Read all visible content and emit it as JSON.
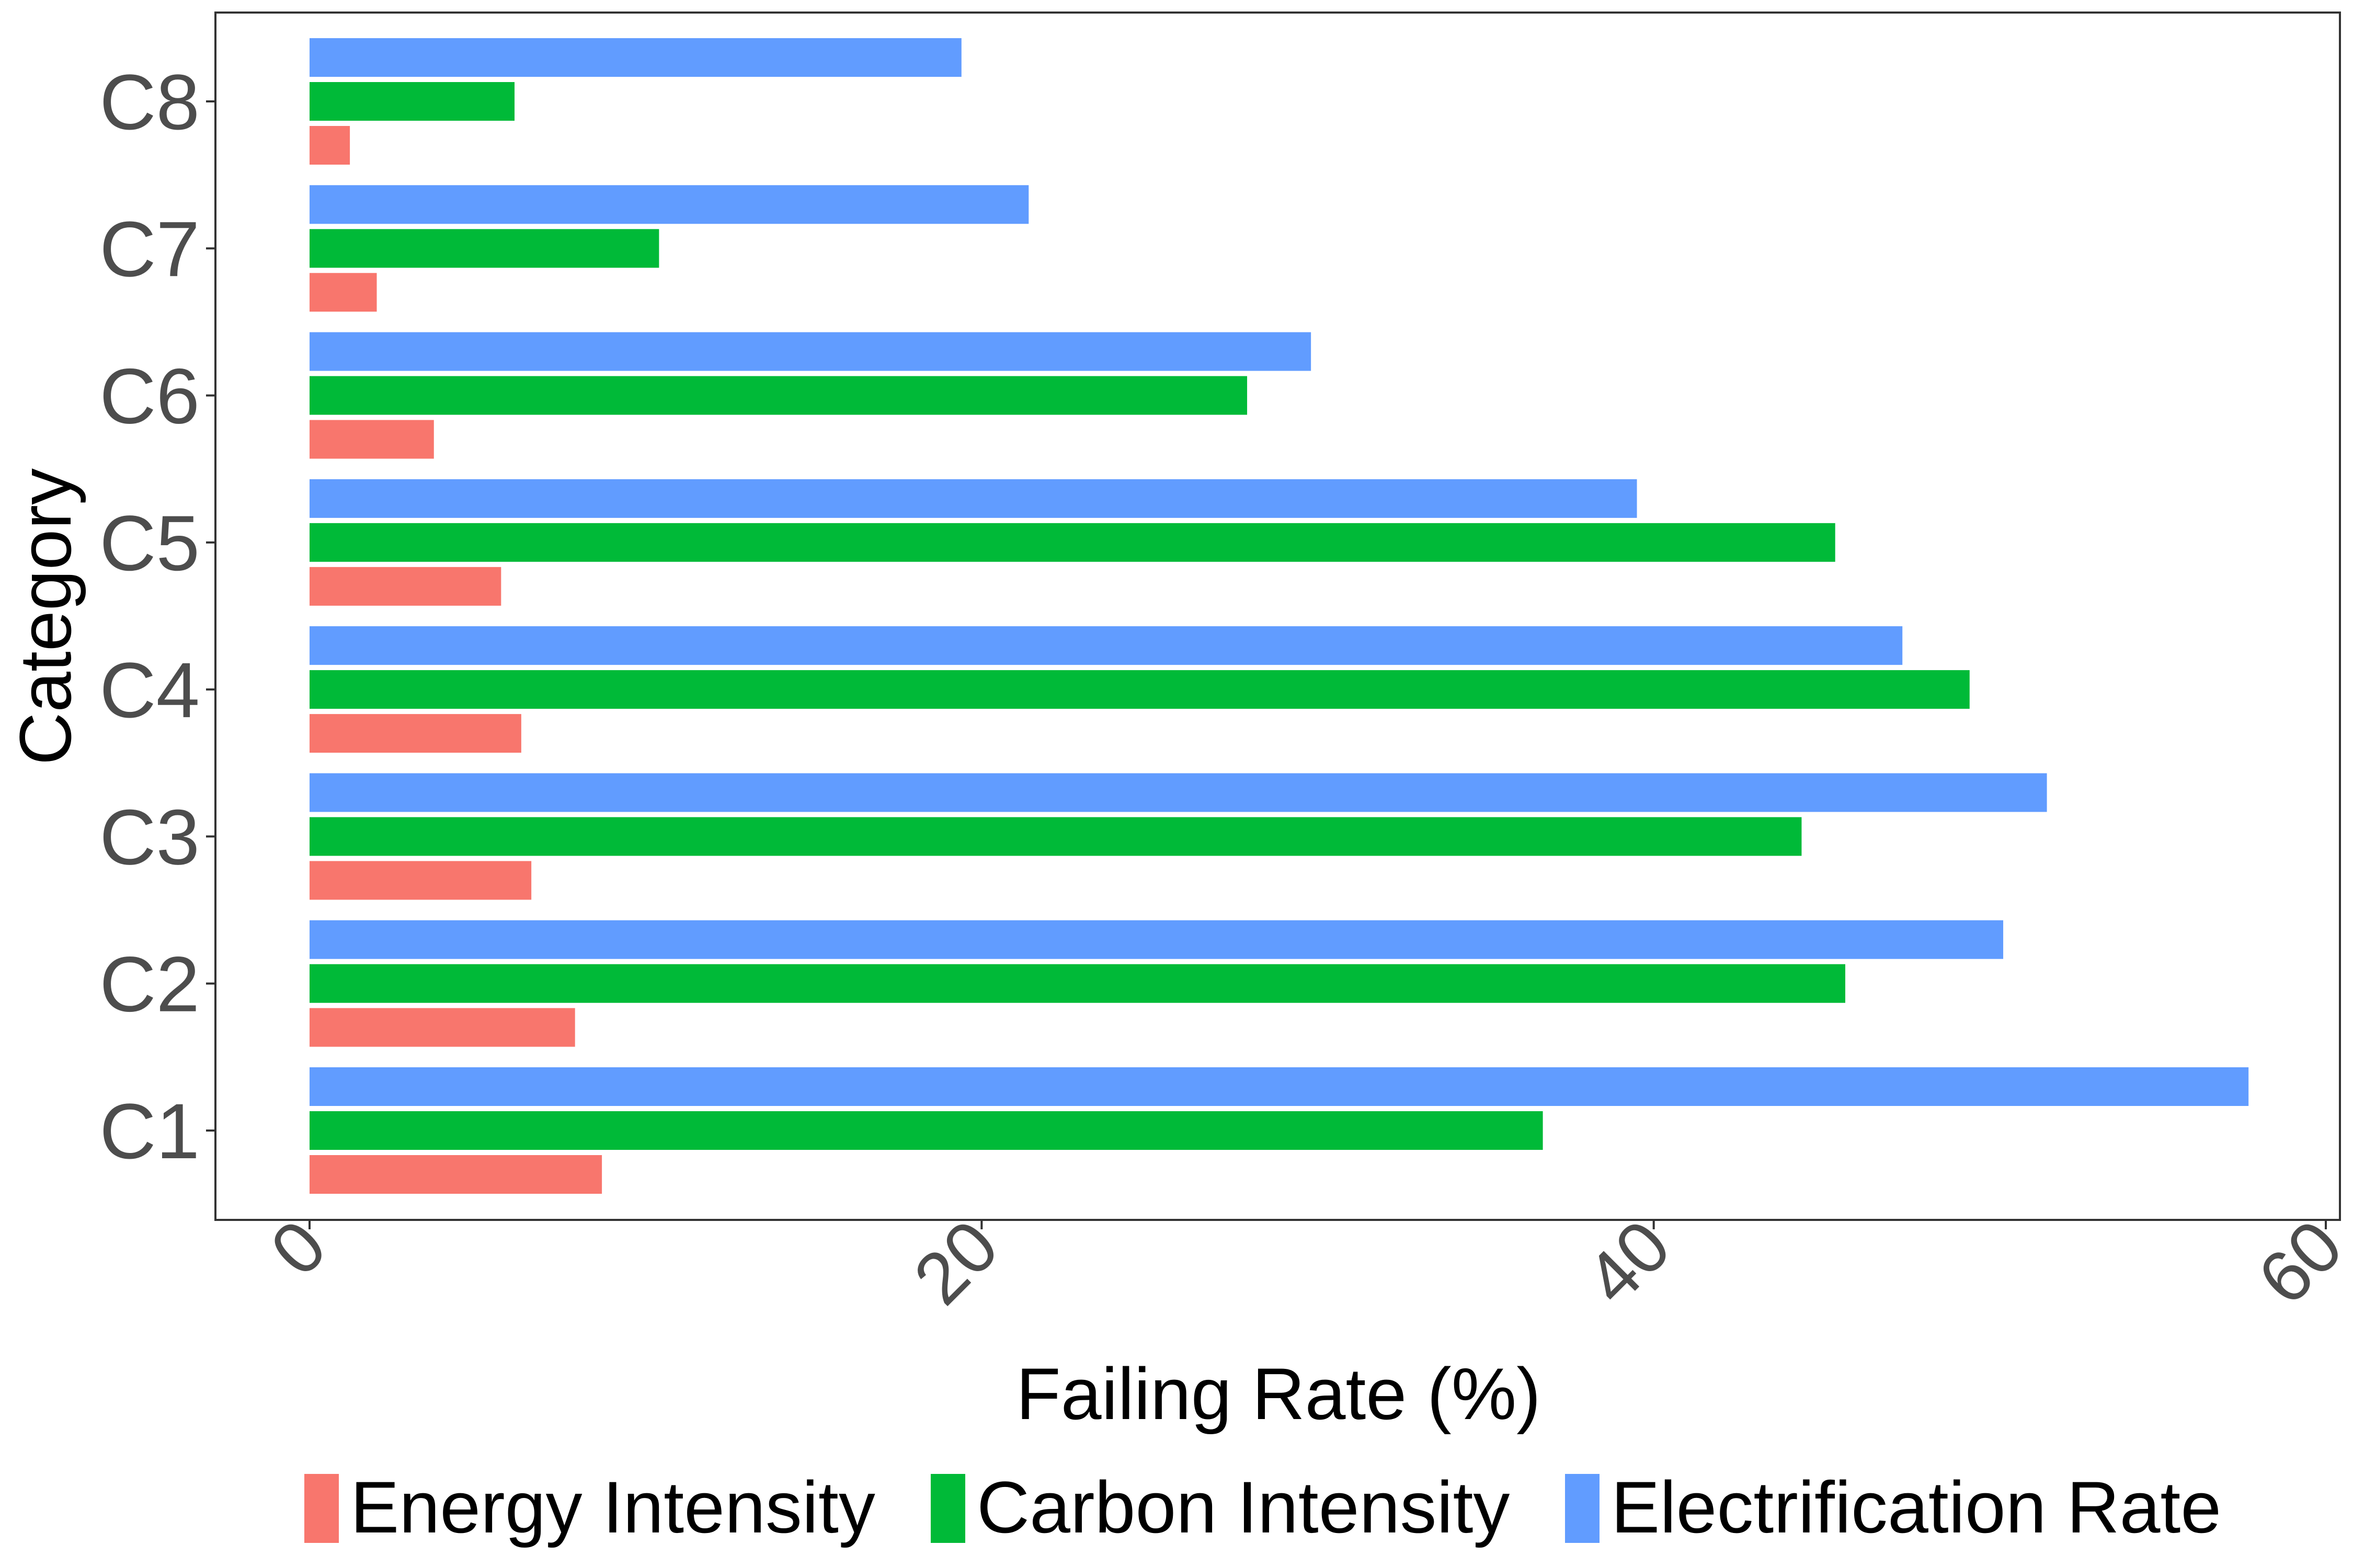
{
  "chart_data": {
    "type": "bar",
    "orientation": "horizontal",
    "categories": [
      "C1",
      "C2",
      "C3",
      "C4",
      "C5",
      "C6",
      "C7",
      "C8"
    ],
    "series": [
      {
        "name": "Energy Intensity",
        "color": "#F8766D",
        "values": [
          8.7,
          7.9,
          6.6,
          6.3,
          5.7,
          3.7,
          2.0,
          1.2
        ]
      },
      {
        "name": "Carbon Intensity",
        "color": "#00BA38",
        "values": [
          36.7,
          45.7,
          44.4,
          49.4,
          45.4,
          27.9,
          10.4,
          6.1
        ]
      },
      {
        "name": "Electrification Rate",
        "color": "#619CFF",
        "values": [
          57.7,
          50.4,
          51.7,
          47.4,
          39.5,
          29.8,
          21.4,
          19.4
        ]
      }
    ],
    "xlabel": "Failing Rate (%)",
    "ylabel": "Category",
    "xlim": [
      -2.8,
      60.2
    ],
    "xticks": [
      "0",
      "20",
      "40",
      "60"
    ],
    "grid": false,
    "legend_position": "bottom"
  }
}
